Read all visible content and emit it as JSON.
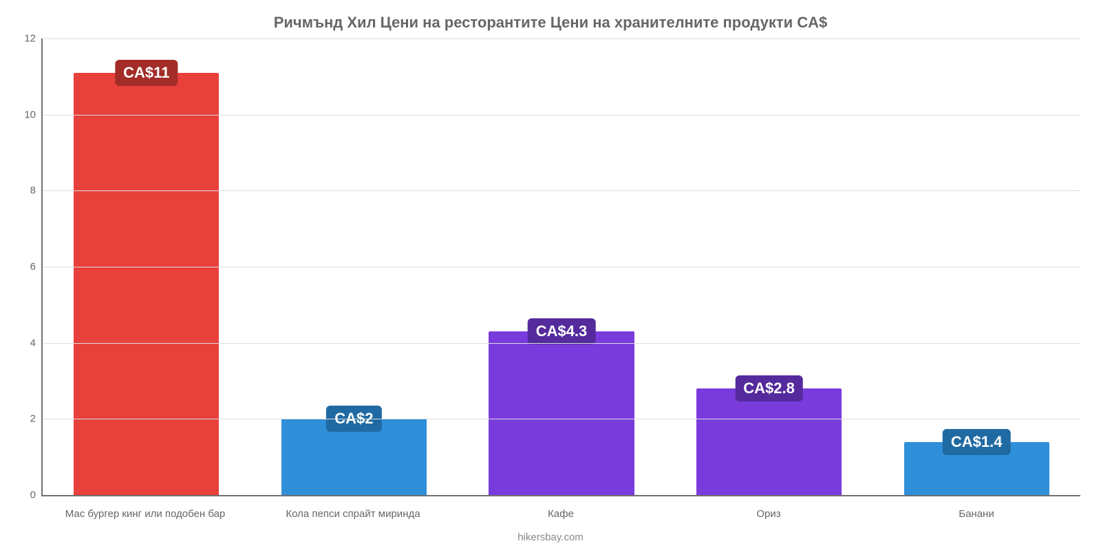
{
  "chart": {
    "type": "bar",
    "title": "Ричмънд Хил Цени на ресторантите Цени на хранителните продукти CA$",
    "title_fontsize": 22,
    "title_color": "#666666",
    "footer": "hikersbay.com",
    "footer_color": "#888888",
    "background_color": "#ffffff",
    "axis_color": "#707070",
    "grid_color": "#dddddd",
    "ylim": [
      0,
      12
    ],
    "ytick_step": 2,
    "yticks": [
      0,
      2,
      4,
      6,
      8,
      10,
      12
    ],
    "tick_label_color": "#666666",
    "tick_label_fontsize": 15,
    "bar_width_pct": 70,
    "value_label_fontsize": 22,
    "value_label_text_color": "#ffffff",
    "value_label_radius": 6,
    "categories": [
      "Мас бургер кинг или подобен бар",
      "Кола пепси спрайт миринда",
      "Кафе",
      "Ориз",
      "Банани"
    ],
    "values": [
      11.1,
      2.0,
      4.3,
      2.8,
      1.4
    ],
    "value_labels": [
      "CA$11",
      "CA$2",
      "CA$4.3",
      "CA$2.8",
      "CA$1.4"
    ],
    "bar_colors": [
      "#e8403a",
      "#2f8fd8",
      "#7a3bdc",
      "#7a3bdc",
      "#2f8fd8"
    ],
    "badge_colors": [
      "#a32c28",
      "#1f6aa3",
      "#542a9c",
      "#542a9c",
      "#1f6aa3"
    ]
  }
}
